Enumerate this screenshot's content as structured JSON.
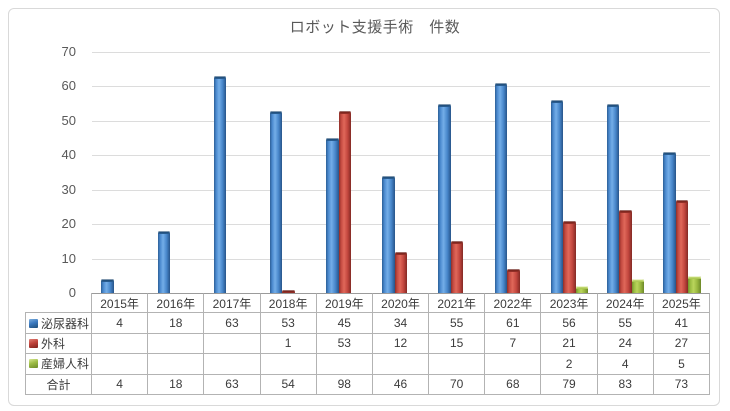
{
  "chart_data": {
    "type": "bar",
    "title": "ロボット支援手術　件数",
    "categories": [
      "2015年",
      "2016年",
      "2017年",
      "2018年",
      "2019年",
      "2020年",
      "2021年",
      "2022年",
      "2023年",
      "2024年",
      "2025年"
    ],
    "series": [
      {
        "id": "urology",
        "name": "泌尿器科",
        "color": "#3c7ac0",
        "values": [
          4,
          18,
          63,
          53,
          45,
          34,
          55,
          61,
          56,
          55,
          41
        ]
      },
      {
        "id": "surgery",
        "name": "外科",
        "color": "#c0433b",
        "values": [
          null,
          null,
          null,
          1,
          53,
          12,
          15,
          7,
          21,
          24,
          27
        ]
      },
      {
        "id": "obgyn",
        "name": "産婦人科",
        "color": "#9dbc45",
        "values": [
          null,
          null,
          null,
          null,
          null,
          null,
          null,
          null,
          2,
          4,
          5
        ]
      }
    ],
    "totals_row": {
      "label": "合計",
      "values": [
        4,
        18,
        63,
        54,
        98,
        46,
        70,
        68,
        79,
        83,
        73
      ]
    },
    "xlabel": "",
    "ylabel": "",
    "ylim": [
      0,
      70
    ],
    "yticks": [
      0,
      10,
      20,
      30,
      40,
      50,
      60,
      70
    ],
    "grid": true,
    "legend_position": "data-table-row-keys",
    "data_table_shown": true,
    "gridline_color": "#dcdcdc",
    "axis_line_color": "#a3a3a3",
    "title_color": "#595959",
    "axis_label_color": "#595959"
  }
}
